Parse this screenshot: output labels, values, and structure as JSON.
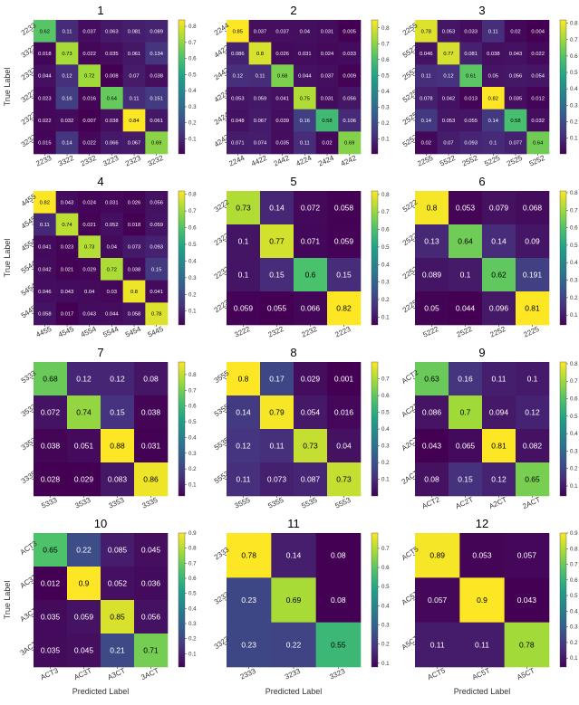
{
  "colormap": [
    "#440154",
    "#46327e",
    "#365c8d",
    "#277f8e",
    "#1fa187",
    "#4ac16d",
    "#a0da39",
    "#fde725"
  ],
  "label_color_dark": "#000000",
  "label_color_light": "#ffffff",
  "chart_data": [
    {
      "type": "heatmap",
      "title": "1",
      "ylabel": "True Label",
      "xlabel": "",
      "labels": [
        "2233",
        "3322",
        "2332",
        "3223",
        "2323",
        "3232"
      ],
      "values": [
        [
          0.62,
          0.11,
          0.037,
          0.063,
          0.081,
          0.089
        ],
        [
          0.018,
          0.73,
          0.022,
          0.035,
          0.061,
          0.134
        ],
        [
          0.044,
          0.12,
          0.72,
          0.008,
          0.07,
          0.038
        ],
        [
          0.023,
          0.16,
          0.016,
          0.64,
          0.11,
          0.151
        ],
        [
          0.022,
          0.032,
          0.007,
          0.038,
          0.84,
          0.061
        ],
        [
          0.015,
          0.14,
          0.022,
          0.066,
          0.067,
          0.69
        ]
      ],
      "colorbar": {
        "min": 0.007,
        "max": 0.84,
        "ticks": [
          "0.1",
          "0.2",
          "0.3",
          "0.4",
          "0.5",
          "0.6",
          "0.7",
          "0.8"
        ]
      }
    },
    {
      "type": "heatmap",
      "title": "2",
      "ylabel": "",
      "xlabel": "",
      "labels": [
        "2244",
        "4422",
        "2442",
        "4224",
        "2424",
        "4242"
      ],
      "values": [
        [
          0.85,
          0.037,
          0.037,
          0.04,
          0.031,
          0.005
        ],
        [
          0.086,
          0.8,
          0.026,
          0.031,
          0.024,
          0.033
        ],
        [
          0.12,
          0.11,
          0.68,
          0.044,
          0.037,
          0.009
        ],
        [
          0.053,
          0.059,
          0.041,
          0.75,
          0.031,
          0.056
        ],
        [
          0.048,
          0.067,
          0.039,
          0.16,
          0.58,
          0.106
        ],
        [
          0.071,
          0.074,
          0.035,
          0.11,
          0.02,
          0.69
        ]
      ],
      "colorbar": {
        "min": 0.005,
        "max": 0.85,
        "ticks": [
          "0.1",
          "0.2",
          "0.3",
          "0.4",
          "0.5",
          "0.6",
          "0.7",
          "0.8"
        ]
      }
    },
    {
      "type": "heatmap",
      "title": "3",
      "ylabel": "",
      "xlabel": "",
      "labels": [
        "2255",
        "5522",
        "2552",
        "5225",
        "2525",
        "5252"
      ],
      "values": [
        [
          0.78,
          0.053,
          0.033,
          0.11,
          0.02,
          0.004
        ],
        [
          0.046,
          0.77,
          0.081,
          0.038,
          0.043,
          0.022
        ],
        [
          0.11,
          0.12,
          0.61,
          0.05,
          0.056,
          0.054
        ],
        [
          0.078,
          0.042,
          0.013,
          0.82,
          0.035,
          0.012
        ],
        [
          0.14,
          0.053,
          0.055,
          0.14,
          0.58,
          0.032
        ],
        [
          0.02,
          0.07,
          0.093,
          0.1,
          0.077,
          0.64
        ]
      ],
      "colorbar": {
        "min": 0.004,
        "max": 0.82,
        "ticks": [
          "0.1",
          "0.2",
          "0.3",
          "0.4",
          "0.5",
          "0.6",
          "0.7",
          "0.8"
        ]
      }
    },
    {
      "type": "heatmap",
      "title": "4",
      "ylabel": "True Label",
      "xlabel": "",
      "labels": [
        "4455",
        "4545",
        "4554",
        "5544",
        "5454",
        "5445"
      ],
      "values": [
        [
          0.82,
          0.043,
          0.024,
          0.031,
          0.026,
          0.056
        ],
        [
          0.11,
          0.74,
          0.021,
          0.052,
          0.018,
          0.059
        ],
        [
          0.041,
          0.023,
          0.73,
          0.04,
          0.073,
          0.093
        ],
        [
          0.042,
          0.021,
          0.029,
          0.72,
          0.038,
          0.15
        ],
        [
          0.046,
          0.043,
          0.04,
          0.03,
          0.8,
          0.041
        ],
        [
          0.058,
          0.017,
          0.043,
          0.044,
          0.058,
          0.78
        ]
      ],
      "colorbar": {
        "min": 0.017,
        "max": 0.82,
        "ticks": [
          "0.1",
          "0.2",
          "0.3",
          "0.4",
          "0.5",
          "0.6",
          "0.7",
          "0.8"
        ]
      }
    },
    {
      "type": "heatmap",
      "title": "5",
      "ylabel": "",
      "xlabel": "",
      "labels": [
        "3222",
        "2322",
        "2232",
        "2223"
      ],
      "values": [
        [
          0.73,
          0.14,
          0.072,
          0.058
        ],
        [
          0.1,
          0.77,
          0.071,
          0.059
        ],
        [
          0.1,
          0.15,
          0.6,
          0.15
        ],
        [
          0.059,
          0.055,
          0.066,
          0.82
        ]
      ],
      "colorbar": {
        "min": 0.055,
        "max": 0.82,
        "ticks": [
          "0.1",
          "0.2",
          "0.3",
          "0.4",
          "0.5",
          "0.6",
          "0.7",
          "0.8"
        ]
      }
    },
    {
      "type": "heatmap",
      "title": "6",
      "ylabel": "",
      "xlabel": "",
      "labels": [
        "5222",
        "2522",
        "2252",
        "2225"
      ],
      "values": [
        [
          0.8,
          0.053,
          0.079,
          0.068
        ],
        [
          0.13,
          0.64,
          0.14,
          0.09
        ],
        [
          0.089,
          0.1,
          0.62,
          0.191
        ],
        [
          0.05,
          0.044,
          0.096,
          0.81
        ]
      ],
      "colorbar": {
        "min": 0.044,
        "max": 0.81,
        "ticks": [
          "0.1",
          "0.2",
          "0.3",
          "0.4",
          "0.5",
          "0.6",
          "0.7",
          "0.8"
        ]
      }
    },
    {
      "type": "heatmap",
      "title": "7",
      "ylabel": "",
      "xlabel": "",
      "labels": [
        "5333",
        "3533",
        "3353",
        "3335"
      ],
      "values": [
        [
          0.68,
          0.12,
          0.12,
          0.08
        ],
        [
          0.072,
          0.74,
          0.15,
          0.038
        ],
        [
          0.038,
          0.051,
          0.88,
          0.031
        ],
        [
          0.028,
          0.029,
          0.083,
          0.86
        ]
      ],
      "colorbar": {
        "min": 0.028,
        "max": 0.88,
        "ticks": [
          "0.1",
          "0.2",
          "0.3",
          "0.4",
          "0.5",
          "0.6",
          "0.7",
          "0.8"
        ]
      }
    },
    {
      "type": "heatmap",
      "title": "8",
      "ylabel": "",
      "xlabel": "",
      "labels": [
        "3555",
        "5355",
        "5535",
        "5553"
      ],
      "values": [
        [
          0.8,
          0.17,
          0.029,
          0.001
        ],
        [
          0.14,
          0.79,
          0.054,
          0.016
        ],
        [
          0.12,
          0.11,
          0.73,
          0.04
        ],
        [
          0.11,
          0.073,
          0.087,
          0.73
        ]
      ],
      "colorbar": {
        "min": 0.001,
        "max": 0.8,
        "ticks": [
          "0.1",
          "0.2",
          "0.3",
          "0.4",
          "0.5",
          "0.6",
          "0.7"
        ]
      }
    },
    {
      "type": "heatmap",
      "title": "9",
      "ylabel": "",
      "xlabel": "",
      "labels": [
        "ACT2",
        "AC2T",
        "A2CT",
        "2ACT"
      ],
      "values": [
        [
          0.63,
          0.16,
          0.11,
          0.1
        ],
        [
          0.086,
          0.7,
          0.094,
          0.12
        ],
        [
          0.043,
          0.065,
          0.81,
          0.082
        ],
        [
          0.08,
          0.15,
          0.12,
          0.65
        ]
      ],
      "colorbar": {
        "min": 0.043,
        "max": 0.81,
        "ticks": [
          "0.1",
          "0.2",
          "0.3",
          "0.4",
          "0.5",
          "0.6",
          "0.7",
          "0.8"
        ]
      }
    },
    {
      "type": "heatmap",
      "title": "10",
      "ylabel": "True Label",
      "xlabel": "Predicted Label",
      "labels": [
        "ACT3",
        "AC3T",
        "A3CT",
        "3ACT"
      ],
      "values": [
        [
          0.65,
          0.22,
          0.085,
          0.045
        ],
        [
          0.012,
          0.9,
          0.052,
          0.036
        ],
        [
          0.035,
          0.059,
          0.85,
          0.056
        ],
        [
          0.035,
          0.045,
          0.21,
          0.71
        ]
      ],
      "colorbar": {
        "min": 0.012,
        "max": 0.9,
        "ticks": [
          "0.1",
          "0.2",
          "0.3",
          "0.4",
          "0.5",
          "0.6",
          "0.7",
          "0.8",
          "0.9"
        ]
      }
    },
    {
      "type": "heatmap",
      "title": "11",
      "ylabel": "",
      "xlabel": "Predicted Label",
      "labels": [
        "2333",
        "3233",
        "3323"
      ],
      "values": [
        [
          0.78,
          0.14,
          0.08
        ],
        [
          0.23,
          0.69,
          0.08
        ],
        [
          0.23,
          0.22,
          0.55
        ]
      ],
      "colorbar": {
        "min": 0.08,
        "max": 0.78,
        "ticks": [
          "0.1",
          "0.2",
          "0.3",
          "0.4",
          "0.5",
          "0.6",
          "0.7"
        ]
      }
    },
    {
      "type": "heatmap",
      "title": "12",
      "ylabel": "",
      "xlabel": "Predicted Label",
      "labels": [
        "ACT5",
        "AC5T",
        "A5CT"
      ],
      "values": [
        [
          0.89,
          0.053,
          0.057
        ],
        [
          0.057,
          0.9,
          0.043
        ],
        [
          0.11,
          0.11,
          0.78
        ]
      ],
      "colorbar": {
        "min": 0.043,
        "max": 0.9,
        "ticks": [
          "0.1",
          "0.2",
          "0.3",
          "0.4",
          "0.5",
          "0.6",
          "0.7",
          "0.8",
          "0.9"
        ]
      }
    }
  ]
}
